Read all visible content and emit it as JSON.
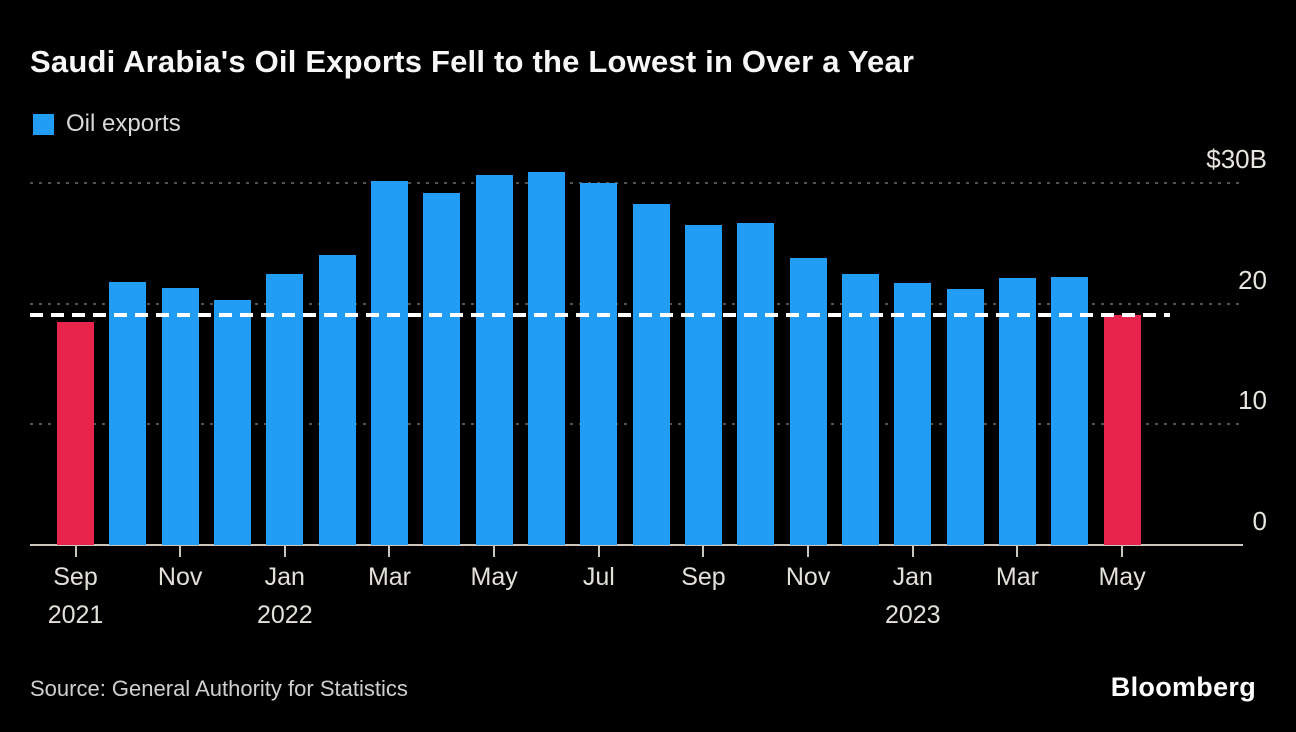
{
  "title": "Saudi Arabia's Oil Exports Fell to the Lowest in Over a Year",
  "legend": {
    "label": "Oil exports",
    "swatch_color": "#219df5"
  },
  "source": "Source: General Authority for Statistics",
  "brand": "Bloomberg",
  "colors": {
    "background": "#000000",
    "bar_default": "#219df5",
    "bar_highlight": "#e9244c",
    "reference_line": "#ffffff",
    "gridline": "#515151",
    "axis": "#cbc6bb"
  },
  "chart_data": {
    "type": "bar",
    "title": "Saudi Arabia's Oil Exports Fell to the Lowest in Over a Year",
    "series_name": "Oil exports",
    "unit": "billions of US dollars",
    "categories": [
      "Sep 2021",
      "Oct 2021",
      "Nov 2021",
      "Dec 2021",
      "Jan 2022",
      "Feb 2022",
      "Mar 2022",
      "Apr 2022",
      "May 2022",
      "Jun 2022",
      "Jul 2022",
      "Aug 2022",
      "Sep 2022",
      "Oct 2022",
      "Nov 2022",
      "Dec 2022",
      "Jan 2023",
      "Feb 2023",
      "Mar 2023",
      "Apr 2023",
      "May 2023"
    ],
    "values": [
      18.5,
      21.8,
      21.3,
      20.3,
      22.5,
      24.0,
      30.2,
      29.2,
      30.7,
      30.9,
      30.0,
      28.3,
      26.5,
      26.7,
      23.8,
      22.5,
      21.7,
      21.2,
      22.1,
      22.2,
      19.1
    ],
    "highlight_indices": [
      0,
      20
    ],
    "reference_line": {
      "value": 19.1,
      "style": "dashed",
      "color": "#ffffff"
    },
    "ylim": [
      0,
      32
    ],
    "grid": "dotted horizontal",
    "legend_position": "top-left",
    "y_axis": {
      "side": "right",
      "ticks": [
        {
          "value": 30,
          "label": "$30B"
        },
        {
          "value": 20,
          "label": "20"
        },
        {
          "value": 10,
          "label": "10"
        },
        {
          "value": 0,
          "label": "0"
        }
      ]
    },
    "x_axis": {
      "tick_every_n_bars": 2,
      "tick_labels": [
        "Sep",
        "Nov",
        "Jan",
        "Mar",
        "May",
        "Jul",
        "Sep",
        "Nov",
        "Jan",
        "Mar",
        "May"
      ],
      "year_labels": [
        {
          "text": "2021",
          "tick_index": 0
        },
        {
          "text": "2022",
          "tick_index": 2
        },
        {
          "text": "2023",
          "tick_index": 8
        }
      ]
    }
  }
}
